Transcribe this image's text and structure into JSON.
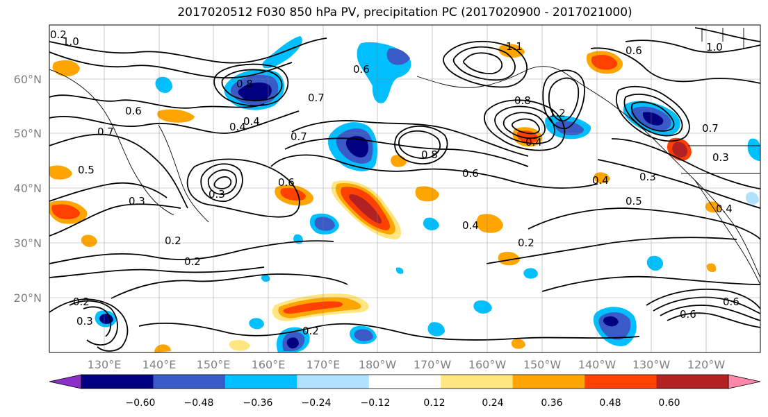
{
  "title": "2017020512 F030 850 hPa PV, precipitation PC (2017020900 - 2017021000)",
  "map": {
    "lat_labels": [
      "60°N",
      "50°N",
      "40°N",
      "30°N",
      "20°N"
    ],
    "lon_labels": [
      "130°E",
      "140°E",
      "150°E",
      "160°E",
      "170°E",
      "180°W",
      "170°W",
      "160°W",
      "150°W",
      "140°W",
      "130°W",
      "120°W"
    ],
    "contour_labels": [
      "0.8",
      "0.7",
      "0.7",
      "0.6",
      "0.6",
      "0.8",
      "0.6",
      "0.5",
      "0.4",
      "0.3",
      "0.3",
      "0.2",
      "0.2",
      "0.2",
      "0.4",
      "0.2",
      "0.3",
      "0.2",
      "1.0",
      "1.0",
      "0.6",
      "0.6",
      "1.1",
      "0.4",
      "0.7",
      "0.7",
      "0.4",
      "0.6",
      "0.3",
      "0.4",
      "0.2",
      "0.6",
      "0.5",
      "1.2",
      "0.4",
      "0.8",
      "0.3"
    ]
  },
  "colorbar": {
    "ticks": [
      "−0.60",
      "−0.48",
      "−0.36",
      "−0.24",
      "−0.12",
      "0.12",
      "0.24",
      "0.36",
      "0.48",
      "0.60"
    ],
    "colors": [
      "#8B2FC9",
      "#000080",
      "#3A5BC7",
      "#00BFFF",
      "#B0E2FF",
      "#FFFFFF",
      "#FFE680",
      "#FFA500",
      "#FF4000",
      "#B22222",
      "#FF88AA"
    ]
  }
}
